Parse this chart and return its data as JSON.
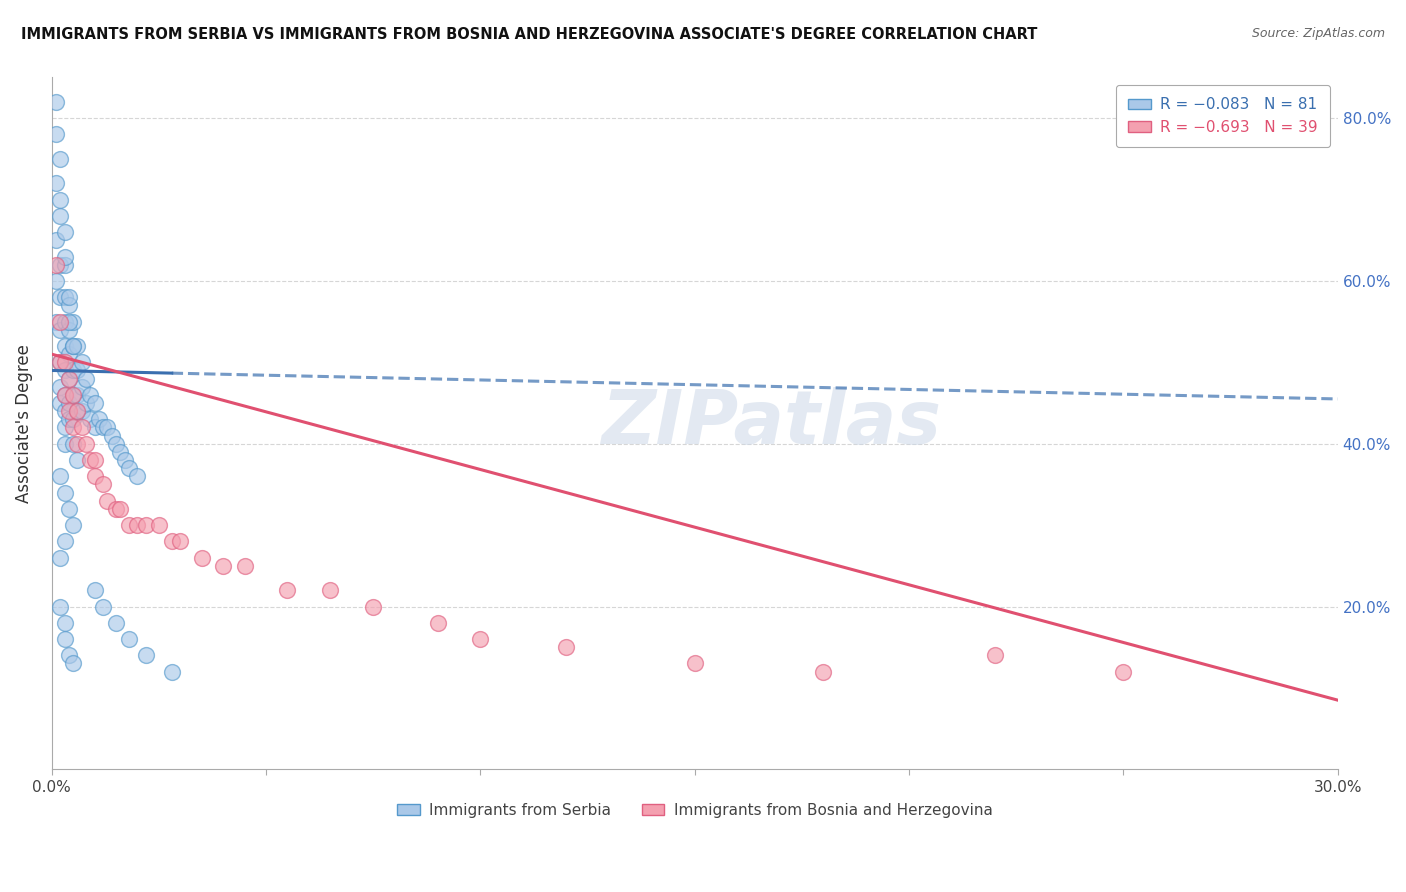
{
  "title": "IMMIGRANTS FROM SERBIA VS IMMIGRANTS FROM BOSNIA AND HERZEGOVINA ASSOCIATE'S DEGREE CORRELATION CHART",
  "source": "Source: ZipAtlas.com",
  "ylabel": "Associate's Degree",
  "x_min": 0.0,
  "x_max": 0.3,
  "y_min": 0.0,
  "y_max": 0.85,
  "x_ticks": [
    0.0,
    0.05,
    0.1,
    0.15,
    0.2,
    0.25,
    0.3
  ],
  "x_tick_labels": [
    "0.0%",
    "",
    "",
    "",
    "",
    "",
    "30.0%"
  ],
  "y_ticks_right": [
    0.2,
    0.4,
    0.6,
    0.8
  ],
  "y_tick_labels_right": [
    "20.0%",
    "40.0%",
    "60.0%",
    "80.0%"
  ],
  "serbia_color": "#aac8e8",
  "bosnia_color": "#f4a0b0",
  "serbia_edge_color": "#5599cc",
  "bosnia_edge_color": "#e06080",
  "serbia_line_color": "#3a6faf",
  "bosnia_line_color": "#e05070",
  "watermark": "ZIPatlas",
  "watermark_color": "#ccd8e8",
  "serbia_R": -0.083,
  "serbia_N": 81,
  "bosnia_R": -0.693,
  "bosnia_N": 39,
  "serbia_line_y0": 0.49,
  "serbia_line_y1": 0.455,
  "bosnia_line_y0": 0.51,
  "bosnia_line_y1": 0.085,
  "serbia_scatter_x": [
    0.001,
    0.001,
    0.001,
    0.001,
    0.001,
    0.002,
    0.002,
    0.002,
    0.002,
    0.002,
    0.002,
    0.002,
    0.003,
    0.003,
    0.003,
    0.003,
    0.003,
    0.003,
    0.003,
    0.003,
    0.004,
    0.004,
    0.004,
    0.004,
    0.004,
    0.004,
    0.005,
    0.005,
    0.005,
    0.005,
    0.005,
    0.006,
    0.006,
    0.006,
    0.006,
    0.007,
    0.007,
    0.007,
    0.008,
    0.008,
    0.009,
    0.009,
    0.01,
    0.01,
    0.011,
    0.012,
    0.013,
    0.014,
    0.015,
    0.016,
    0.017,
    0.018,
    0.02,
    0.001,
    0.002,
    0.002,
    0.003,
    0.003,
    0.003,
    0.004,
    0.004,
    0.005,
    0.005,
    0.006,
    0.002,
    0.003,
    0.004,
    0.005,
    0.003,
    0.002,
    0.002,
    0.003,
    0.003,
    0.004,
    0.005,
    0.01,
    0.012,
    0.015,
    0.018,
    0.022,
    0.028
  ],
  "serbia_scatter_y": [
    0.78,
    0.72,
    0.65,
    0.6,
    0.55,
    0.68,
    0.62,
    0.58,
    0.54,
    0.5,
    0.47,
    0.45,
    0.62,
    0.58,
    0.55,
    0.52,
    0.49,
    0.46,
    0.44,
    0.42,
    0.57,
    0.54,
    0.51,
    0.48,
    0.45,
    0.43,
    0.55,
    0.52,
    0.49,
    0.46,
    0.43,
    0.52,
    0.49,
    0.46,
    0.44,
    0.5,
    0.47,
    0.44,
    0.48,
    0.45,
    0.46,
    0.43,
    0.45,
    0.42,
    0.43,
    0.42,
    0.42,
    0.41,
    0.4,
    0.39,
    0.38,
    0.37,
    0.36,
    0.82,
    0.75,
    0.7,
    0.66,
    0.63,
    0.4,
    0.58,
    0.55,
    0.52,
    0.4,
    0.38,
    0.36,
    0.34,
    0.32,
    0.3,
    0.28,
    0.26,
    0.2,
    0.18,
    0.16,
    0.14,
    0.13,
    0.22,
    0.2,
    0.18,
    0.16,
    0.14,
    0.12
  ],
  "bosnia_scatter_x": [
    0.001,
    0.002,
    0.002,
    0.003,
    0.003,
    0.004,
    0.004,
    0.005,
    0.005,
    0.006,
    0.006,
    0.007,
    0.008,
    0.009,
    0.01,
    0.01,
    0.012,
    0.013,
    0.015,
    0.016,
    0.018,
    0.02,
    0.022,
    0.025,
    0.028,
    0.03,
    0.035,
    0.04,
    0.045,
    0.055,
    0.065,
    0.075,
    0.09,
    0.1,
    0.12,
    0.15,
    0.18,
    0.22,
    0.25
  ],
  "bosnia_scatter_y": [
    0.62,
    0.55,
    0.5,
    0.5,
    0.46,
    0.48,
    0.44,
    0.46,
    0.42,
    0.44,
    0.4,
    0.42,
    0.4,
    0.38,
    0.38,
    0.36,
    0.35,
    0.33,
    0.32,
    0.32,
    0.3,
    0.3,
    0.3,
    0.3,
    0.28,
    0.28,
    0.26,
    0.25,
    0.25,
    0.22,
    0.22,
    0.2,
    0.18,
    0.16,
    0.15,
    0.13,
    0.12,
    0.14,
    0.12
  ]
}
